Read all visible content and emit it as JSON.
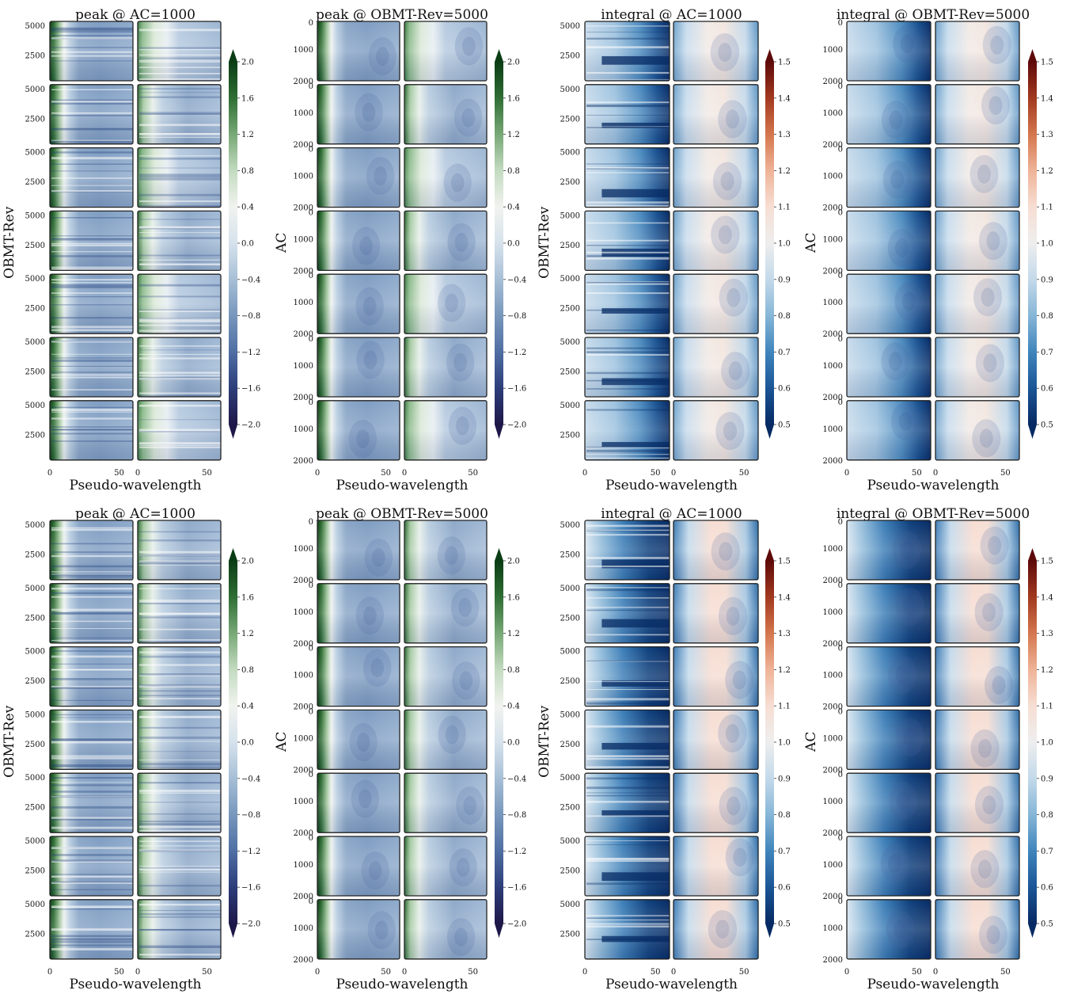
{
  "figure": {
    "rows": 2,
    "subplots_per_group": 7,
    "panels_per_subplot": 2,
    "pseudo_wavelength_range": [
      0,
      60
    ]
  },
  "colorbar_peak": {
    "colormap": "green-white-blue",
    "range": [
      -2.0,
      2.0
    ],
    "ticks": [
      "2.0",
      "1.6",
      "1.2",
      "0.8",
      "0.4",
      "0.0",
      "−0.4",
      "−0.8",
      "−1.2",
      "−1.6",
      "−2.0"
    ],
    "colors": [
      "#0b3d15",
      "#2f6e34",
      "#78a877",
      "#c3dbc0",
      "#f1f3ef",
      "#d6e2ec",
      "#a7bfd6",
      "#7797bc",
      "#4f6ea3",
      "#2d3d7a",
      "#1e1848"
    ]
  },
  "colorbar_integral": {
    "colormap": "blue-white-red",
    "range": [
      0.5,
      1.5
    ],
    "ticks": [
      "1.5",
      "1.4",
      "1.3",
      "1.2",
      "1.1",
      "1.0",
      "0.9",
      "0.8",
      "0.7",
      "0.6",
      "0.5"
    ],
    "colors": [
      "#5e0a0a",
      "#a2391f",
      "#d4764d",
      "#efb397",
      "#f7ded3",
      "#eeeeee",
      "#c3d9ea",
      "#86b6d7",
      "#3f85bc",
      "#1b5596",
      "#062a63"
    ]
  },
  "chart_data": [
    {
      "type": "heatmap",
      "row": 1,
      "column": 1,
      "title": "peak @ AC=1000",
      "xlabel": "Pseudo-wavelength",
      "ylabel": "OBMT-Rev",
      "xticks": [
        "0",
        "50",
        "0",
        "50"
      ],
      "yticks": [
        "5000",
        "2500"
      ],
      "value_range": [
        -2.0,
        2.0
      ]
    },
    {
      "type": "heatmap",
      "row": 1,
      "column": 2,
      "title": "peak @ OBMT-Rev=5000",
      "xlabel": "Pseudo-wavelength",
      "ylabel": "AC",
      "xticks": [
        "0",
        "50",
        "0",
        "50"
      ],
      "yticks": [
        "0",
        "1000",
        "2000"
      ],
      "value_range": [
        -2.0,
        2.0
      ]
    },
    {
      "type": "heatmap",
      "row": 1,
      "column": 3,
      "title": "integral @ AC=1000",
      "xlabel": "Pseudo-wavelength",
      "ylabel": "OBMT-Rev",
      "xticks": [
        "0",
        "50",
        "0",
        "50"
      ],
      "yticks": [
        "5000",
        "2500"
      ],
      "value_range": [
        0.5,
        1.5
      ]
    },
    {
      "type": "heatmap",
      "row": 1,
      "column": 4,
      "title": "integral @ OBMT-Rev=5000",
      "xlabel": "Pseudo-wavelength",
      "ylabel": "AC",
      "xticks": [
        "0",
        "50",
        "0",
        "50"
      ],
      "yticks": [
        "0",
        "1000",
        "2000"
      ],
      "value_range": [
        0.5,
        1.5
      ]
    },
    {
      "type": "heatmap",
      "row": 2,
      "column": 1,
      "title": "peak @ AC=1000",
      "xlabel": "Pseudo-wavelength",
      "ylabel": "OBMT-Rev",
      "xticks": [
        "0",
        "50",
        "0",
        "50"
      ],
      "yticks": [
        "5000",
        "2500"
      ],
      "value_range": [
        -2.0,
        2.0
      ]
    },
    {
      "type": "heatmap",
      "row": 2,
      "column": 2,
      "title": "peak @ OBMT-Rev=5000",
      "xlabel": "Pseudo-wavelength",
      "ylabel": "AC",
      "xticks": [
        "0",
        "50",
        "0",
        "50"
      ],
      "yticks": [
        "0",
        "1000",
        "2000"
      ],
      "value_range": [
        -2.0,
        2.0
      ]
    },
    {
      "type": "heatmap",
      "row": 2,
      "column": 3,
      "title": "integral @ AC=1000",
      "xlabel": "Pseudo-wavelength",
      "ylabel": "OBMT-Rev",
      "xticks": [
        "0",
        "50",
        "0",
        "50"
      ],
      "yticks": [
        "5000",
        "2500"
      ],
      "value_range": [
        0.5,
        1.5
      ]
    },
    {
      "type": "heatmap",
      "row": 2,
      "column": 4,
      "title": "integral @ OBMT-Rev=5000",
      "xlabel": "Pseudo-wavelength",
      "ylabel": "AC",
      "xticks": [
        "0",
        "50",
        "0",
        "50"
      ],
      "yticks": [
        "0",
        "1000",
        "2000"
      ],
      "value_range": [
        0.5,
        1.5
      ]
    }
  ]
}
